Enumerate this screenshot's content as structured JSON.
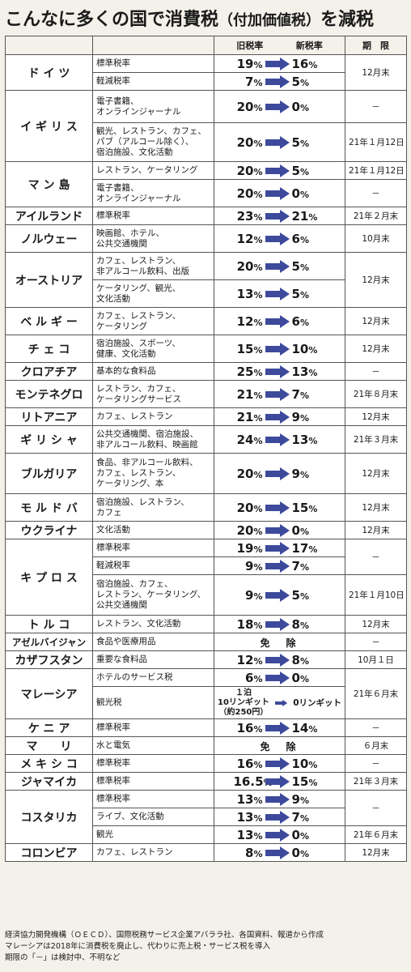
{
  "title": {
    "main": "こんなに多くの国で消費税",
    "paren": "（付加価値税）",
    "tail": "を減税"
  },
  "header": {
    "old_rate": "旧税率",
    "new_rate": "新税率",
    "period": "期　限"
  },
  "rows": [
    {
      "country": "ド イ ツ",
      "country_rowspan": 2,
      "item": "標準税率",
      "old": "19",
      "new": "16",
      "period": "12月末",
      "period_rowspan": 2
    },
    {
      "item": "軽減税率",
      "old": "7",
      "new": "5"
    },
    {
      "country": "イ ギ リ ス",
      "country_rowspan": 2,
      "item": "電子書籍、<br>オンラインジャーナル",
      "old": "20",
      "new": "0",
      "period": "－",
      "period_rowspan": 1
    },
    {
      "item": "観光、レストラン、カフェ、<br>パブ（アルコール除く）、<br>宿泊施設、文化活動",
      "old": "20",
      "new": "5",
      "period": "21年１月12日",
      "period_rowspan": 1
    },
    {
      "country": "マ ン 島",
      "country_rowspan": 2,
      "item": "レストラン、ケータリング",
      "old": "20",
      "new": "5",
      "period": "21年１月12日",
      "period_rowspan": 1
    },
    {
      "item": "電子書籍、<br>オンラインジャーナル",
      "old": "20",
      "new": "0",
      "period": "－",
      "period_rowspan": 1
    },
    {
      "country": "アイルランド",
      "country_rowspan": 1,
      "item": "標準税率",
      "old": "23",
      "new": "21",
      "period": "21年２月末",
      "period_rowspan": 1
    },
    {
      "country": "ノルウェー",
      "country_rowspan": 1,
      "item": "映画館、ホテル、<br>公共交通機関",
      "old": "12",
      "new": "6",
      "period": "10月末",
      "period_rowspan": 1
    },
    {
      "country": "オーストリア",
      "country_rowspan": 2,
      "item": "カフェ、レストラン、<br>非アルコール飲料、出版",
      "old": "20",
      "new": "5",
      "period": "12月末",
      "period_rowspan": 2
    },
    {
      "item": "ケータリング、観光、<br>文化活動",
      "old": "13",
      "new": "5"
    },
    {
      "country": "ベ ル ギ ー",
      "country_rowspan": 1,
      "item": "カフェ、レストラン、<br>ケータリング",
      "old": "12",
      "new": "6",
      "period": "12月末",
      "period_rowspan": 1
    },
    {
      "country": "チ ェ コ",
      "country_rowspan": 1,
      "item": "宿泊施設、スポーツ、<br>健康、文化活動",
      "old": "15",
      "new": "10",
      "period": "12月末",
      "period_rowspan": 1
    },
    {
      "country": "クロアチア",
      "country_rowspan": 1,
      "item": "基本的な食料品",
      "old": "25",
      "new": "13",
      "period": "－",
      "period_rowspan": 1
    },
    {
      "country": "モンテネグロ",
      "country_rowspan": 1,
      "item": "レストラン、カフェ、<br>ケータリングサービス",
      "old": "21",
      "new": "7",
      "period": "21年８月末",
      "period_rowspan": 1
    },
    {
      "country": "リトアニア",
      "country_rowspan": 1,
      "item": "カフェ、レストラン",
      "old": "21",
      "new": "9",
      "period": "12月末",
      "period_rowspan": 1
    },
    {
      "country": "ギ リ シ ャ",
      "country_rowspan": 1,
      "item": "公共交通機関、宿泊施設、<br>非アルコール飲料、映画館",
      "old": "24",
      "new": "13",
      "period": "21年３月末",
      "period_rowspan": 1
    },
    {
      "country": "ブルガリア",
      "country_rowspan": 1,
      "item": "食品、非アルコール飲料、<br>カフェ、レストラン、<br>ケータリング、本",
      "old": "20",
      "new": "9",
      "period": "12月末",
      "period_rowspan": 1
    },
    {
      "country": "モ ル ド バ",
      "country_rowspan": 1,
      "item": "宿泊施設、レストラン、<br>カフェ",
      "old": "20",
      "new": "15",
      "period": "12月末",
      "period_rowspan": 1
    },
    {
      "country": "ウクライナ",
      "country_rowspan": 1,
      "item": "文化活動",
      "old": "20",
      "new": "0",
      "period": "12月末",
      "period_rowspan": 1
    },
    {
      "country": "キ プ ロ ス",
      "country_rowspan": 3,
      "item": "標準税率",
      "old": "19",
      "new": "17",
      "period": "－",
      "period_rowspan": 2
    },
    {
      "item": "軽減税率",
      "old": "9",
      "new": "7"
    },
    {
      "item": "宿泊施設、カフェ、<br>レストラン、ケータリング、<br>公共交通機関",
      "old": "9",
      "new": "5",
      "period": "21年１月10日",
      "period_rowspan": 1
    },
    {
      "country": "ト ル コ",
      "country_rowspan": 1,
      "item": "レストラン、文化活動",
      "old": "18",
      "new": "8",
      "period": "12月末",
      "period_rowspan": 1
    },
    {
      "country": "アゼルバイジャン",
      "country_small": true,
      "country_rowspan": 1,
      "item": "食品や医療用品",
      "exempt": "免　除",
      "period": "－",
      "period_rowspan": 1
    },
    {
      "country": "カザフスタン",
      "country_rowspan": 1,
      "item": "重要な食料品",
      "old": "12",
      "new": "8",
      "period": "10月１日",
      "period_rowspan": 1
    },
    {
      "country": "マレーシア",
      "country_rowspan": 2,
      "item": "ホテルのサービス税",
      "old": "6",
      "new": "0",
      "period": "21年６月末",
      "period_rowspan": 2
    },
    {
      "item": "観光税",
      "malaysia": {
        "old": "１泊<br>10リンギット<br>（約250円）",
        "new": "0リンギット"
      }
    },
    {
      "country": "ケ ニ ア",
      "country_rowspan": 1,
      "item": "標準税率",
      "old": "16",
      "new": "14",
      "period": "－",
      "period_rowspan": 1
    },
    {
      "country": "マ　　リ",
      "country_rowspan": 1,
      "item": "水と電気",
      "exempt": "免　除",
      "period": "６月末",
      "period_rowspan": 1
    },
    {
      "country": "メ キ シ コ",
      "country_rowspan": 1,
      "item": "標準税率",
      "old": "16",
      "new": "10",
      "period": "－",
      "period_rowspan": 1
    },
    {
      "country": "ジャマイカ",
      "country_rowspan": 1,
      "item": "標準税率",
      "old": "16.5",
      "new": "15",
      "period": "21年３月末",
      "period_rowspan": 1
    },
    {
      "country": "コスタリカ",
      "country_rowspan": 3,
      "item": "標準税率",
      "old": "13",
      "new": "9",
      "period": "－",
      "period_rowspan": 2
    },
    {
      "item": "ライブ、文化活動",
      "old": "13",
      "new": "7"
    },
    {
      "item": "観光",
      "old": "13",
      "new": "0",
      "period": "21年６月末",
      "period_rowspan": 1
    },
    {
      "country": "コロンビア",
      "country_rowspan": 1,
      "item": "カフェ、レストラン",
      "old": "8",
      "new": "0",
      "period": "12月末",
      "period_rowspan": 1
    }
  ],
  "notes": [
    "経済協力開発機構（ＯＥＣＤ）、国際税務サービス企業アバララ社、各国資料、報道から作成",
    "マレーシアは2018年に消費税を廃止し、代わりに売上税・サービス税を導入",
    "期限の「－」は検討中、不明など"
  ],
  "colors": {
    "arrow": "#3d4a9c",
    "border": "#555555",
    "background": "#f4f1ea"
  }
}
